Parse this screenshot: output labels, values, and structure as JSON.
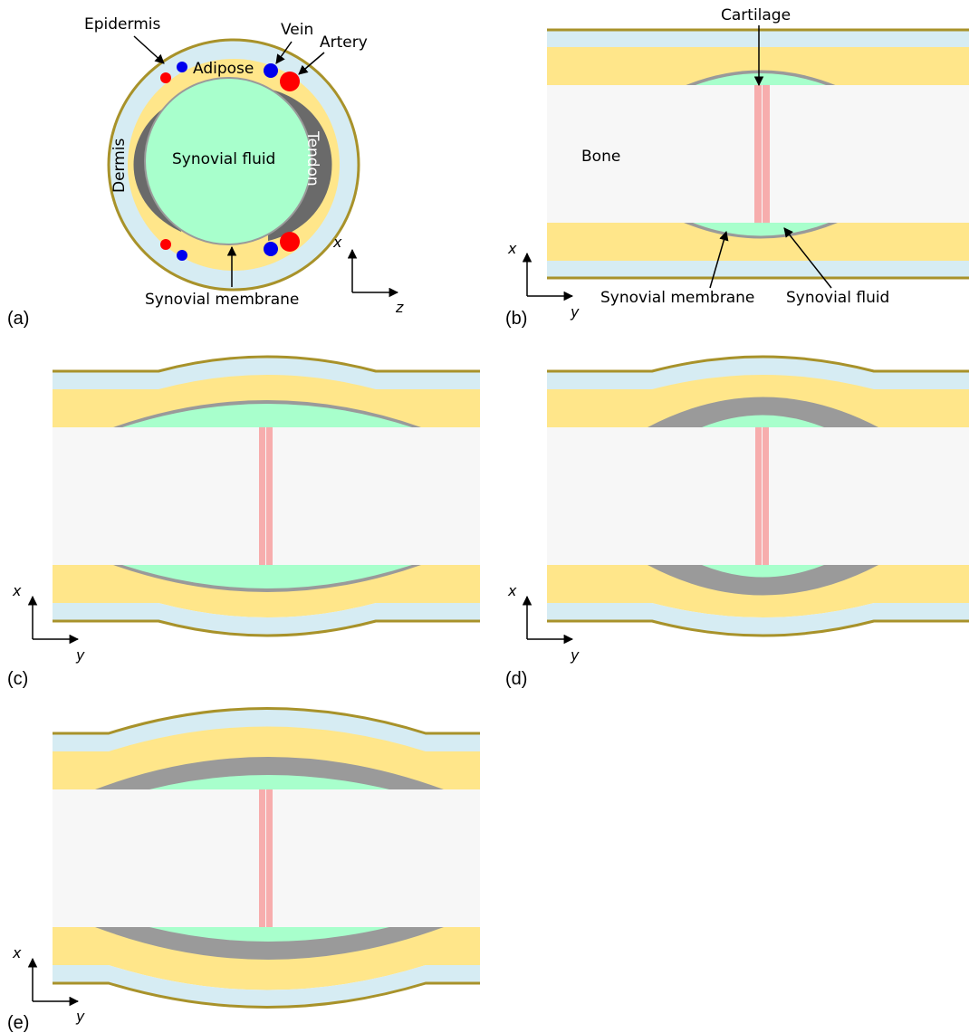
{
  "panel_a": {
    "label": "(a)",
    "epidermis": "Epidermis",
    "vein": "Vein",
    "artery": "Artery",
    "adipose": "Adipose",
    "synovial_fluid": "Synovial fluid",
    "tendon": "Tendon",
    "dermis": "Dermis",
    "synovial_membrane": "Synovial membrane",
    "axis_x": "x",
    "axis_z": "z"
  },
  "panel_b": {
    "label": "(b)",
    "cartilage": "Cartilage",
    "bone": "Bone",
    "synovial_membrane": "Synovial membrane",
    "synovial_fluid": "Synovial fluid",
    "axis_x": "x",
    "axis_y": "y"
  },
  "panel_c": {
    "label": "(c)",
    "axis_x": "x",
    "axis_y": "y"
  },
  "panel_d": {
    "label": "(d)",
    "axis_x": "x",
    "axis_y": "y"
  },
  "panel_e": {
    "label": "(e)",
    "axis_x": "x",
    "axis_y": "y"
  },
  "colors": {
    "epidermis_line": "#a8922a",
    "dermis": "#d6ecf3",
    "adipose": "#ffe68a",
    "bone": "#f7f7f7",
    "synovial_fluid": "#a8ffcc",
    "membrane": "#9a9a9a",
    "tendon": "#6a6a6a",
    "cartilage": "#f7adad",
    "vein": "#0000ee",
    "artery": "#ff0000"
  }
}
